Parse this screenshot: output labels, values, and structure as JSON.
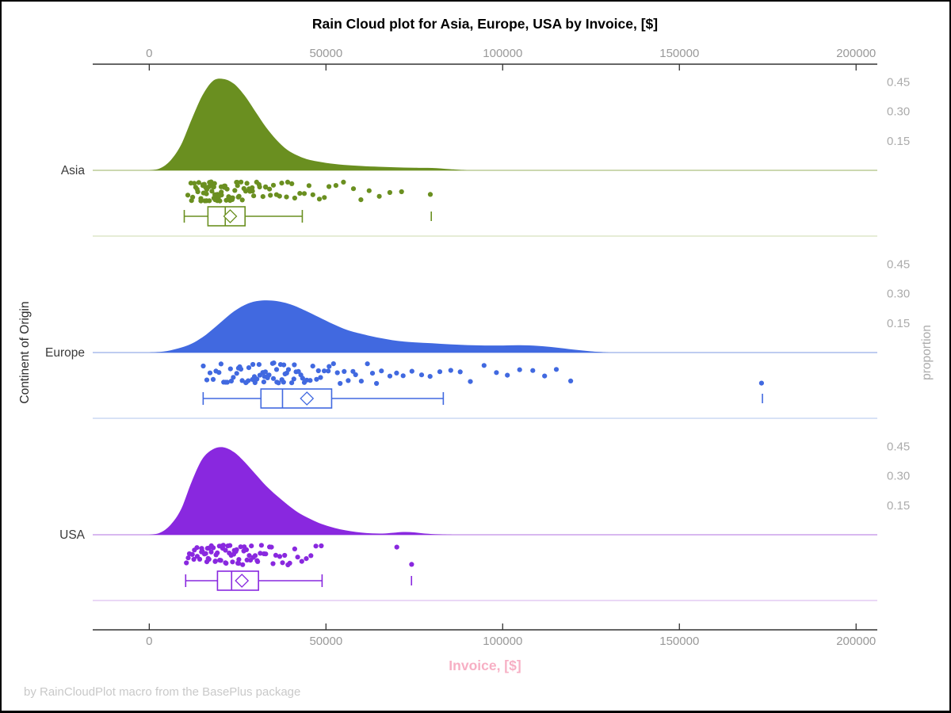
{
  "title": "Rain Cloud plot for Asia, Europe, USA by Invoice, [$]",
  "xlabel": "Invoice, [$]",
  "ylabel_left": "Continent of Origin",
  "ylabel_right": "proportion",
  "footer": "by RainCloudPlot macro from the BasePlus package",
  "colors": {
    "title": "#000000",
    "xlabel_pink": "#F7AFC4",
    "footer_gray": "#c9c9c9",
    "axis_line": "#333333",
    "tick_label_gray": "#999999",
    "proportion_label_gray": "#ababab",
    "category_label": "#3a3a3a",
    "asia": "#6A8F20",
    "europe": "#4169E0",
    "usa": "#8928DF"
  },
  "chart_data": {
    "type": "raincloud",
    "title": "Rain Cloud plot for Asia, Europe, USA by Invoice, [$]",
    "xlabel": "Invoice, [$]",
    "ylabel": "Continent of Origin",
    "y2label": "proportion",
    "x_axis": {
      "ticks": [
        0,
        50000,
        100000,
        150000,
        200000
      ],
      "range": [
        -16000,
        206000
      ]
    },
    "proportion_ticks": [
      0.15,
      0.3,
      0.45
    ],
    "legend_position": "none",
    "grid": false,
    "groups": [
      {
        "label": "Asia",
        "color": "#6A8F20",
        "light_color": "#BCCC96",
        "separator_color": "#DDE5C8",
        "density": {
          "x": [
            0,
            3000,
            6000,
            9000,
            12000,
            15000,
            18000,
            21000,
            24000,
            27000,
            30000,
            33000,
            36000,
            39000,
            42000,
            45000,
            50000,
            55000,
            60000,
            65000,
            70000,
            75000,
            80000,
            85000,
            90000
          ],
          "y": [
            0,
            0.01,
            0.05,
            0.13,
            0.26,
            0.38,
            0.455,
            0.465,
            0.44,
            0.38,
            0.3,
            0.22,
            0.155,
            0.105,
            0.075,
            0.055,
            0.038,
            0.028,
            0.022,
            0.018,
            0.015,
            0.013,
            0.012,
            0.006,
            0
          ]
        },
        "box": {
          "whisker_low": 9900,
          "q1": 16600,
          "median": 21500,
          "q3": 27100,
          "whisker_high": 43300,
          "mean": 22900,
          "outliers": [
            79800
          ]
        },
        "points": [
          11200,
          11700,
          12100,
          12500,
          12800,
          13100,
          13400,
          13700,
          14000,
          14300,
          14600,
          14900,
          15100,
          15300,
          15500,
          15700,
          15900,
          16100,
          16300,
          16500,
          16700,
          16900,
          17100,
          17300,
          17500,
          17700,
          17900,
          18100,
          18300,
          18500,
          18700,
          18900,
          19100,
          19300,
          19500,
          19700,
          19900,
          20100,
          20300,
          20500,
          20700,
          20900,
          21100,
          21400,
          21700,
          22000,
          22300,
          22600,
          22900,
          23200,
          23500,
          23800,
          24100,
          24400,
          24700,
          25000,
          25300,
          25600,
          26000,
          26400,
          26800,
          27200,
          27600,
          28000,
          28400,
          28800,
          29300,
          29800,
          30300,
          30800,
          31400,
          32000,
          32600,
          33200,
          33900,
          34600,
          35300,
          36000,
          36800,
          37600,
          38500,
          39400,
          40400,
          41500,
          42600,
          43800,
          45000,
          46500,
          48000,
          49500,
          51000,
          53000,
          55000,
          57500,
          60000,
          62500,
          65000,
          68000,
          71500,
          79800
        ]
      },
      {
        "label": "Europe",
        "color": "#4169E0",
        "light_color": "#A9BCEC",
        "separator_color": "#CCD8F4",
        "density": {
          "x": [
            0,
            4000,
            8000,
            12000,
            16000,
            20000,
            24000,
            28000,
            32000,
            36000,
            40000,
            44000,
            48000,
            52000,
            56000,
            60000,
            65000,
            70000,
            75000,
            80000,
            85000,
            90000,
            95000,
            100000,
            105000,
            110000,
            115000,
            120000,
            125000,
            130000
          ],
          "y": [
            0,
            0.005,
            0.02,
            0.045,
            0.09,
            0.15,
            0.21,
            0.25,
            0.265,
            0.262,
            0.245,
            0.215,
            0.18,
            0.145,
            0.115,
            0.095,
            0.075,
            0.06,
            0.052,
            0.047,
            0.042,
            0.038,
            0.036,
            0.036,
            0.037,
            0.034,
            0.026,
            0.015,
            0.006,
            0
          ]
        },
        "box": {
          "whisker_low": 15250,
          "q1": 31600,
          "median": 37700,
          "q3": 51600,
          "whisker_high": 83200,
          "mean": 44600,
          "outliers": [
            173500
          ]
        },
        "points": [
          15500,
          16500,
          17400,
          18200,
          19000,
          19700,
          20400,
          21000,
          21600,
          22200,
          22800,
          23400,
          24000,
          24500,
          25000,
          25500,
          26000,
          26500,
          27000,
          27500,
          28000,
          28500,
          29000,
          29400,
          29800,
          30200,
          30600,
          31000,
          31400,
          31800,
          32200,
          32600,
          33000,
          33400,
          33800,
          34200,
          34600,
          35000,
          35400,
          35800,
          36200,
          36600,
          37000,
          37400,
          37800,
          38200,
          38700,
          39200,
          39700,
          40200,
          40700,
          41200,
          41800,
          42400,
          43000,
          43600,
          44200,
          44900,
          45600,
          46300,
          47000,
          47800,
          48600,
          49400,
          50300,
          51200,
          52100,
          53100,
          54100,
          55200,
          56300,
          57500,
          58700,
          60000,
          61500,
          63000,
          64500,
          66000,
          68000,
          70000,
          72000,
          74500,
          77000,
          79500,
          82000,
          85000,
          88000,
          91000,
          94500,
          98000,
          101500,
          105000,
          108500,
          112000,
          115500,
          119000,
          173500
        ]
      },
      {
        "label": "USA",
        "color": "#8928DF",
        "light_color": "#CBA0EC",
        "separator_color": "#E3CCF4",
        "density": {
          "x": [
            0,
            3000,
            6000,
            9000,
            12000,
            15000,
            18000,
            21000,
            24000,
            27000,
            30000,
            33000,
            36000,
            39000,
            42000,
            45000,
            48000,
            51000,
            54000,
            57000,
            60000,
            63000,
            66000,
            69000,
            72000,
            75000,
            78000,
            82000,
            86000
          ],
          "y": [
            0,
            0.01,
            0.05,
            0.13,
            0.27,
            0.385,
            0.435,
            0.445,
            0.42,
            0.37,
            0.31,
            0.25,
            0.2,
            0.155,
            0.115,
            0.085,
            0.06,
            0.042,
            0.028,
            0.018,
            0.011,
            0.007,
            0.006,
            0.01,
            0.014,
            0.012,
            0.006,
            0.002,
            0
          ]
        },
        "box": {
          "whisker_low": 10300,
          "q1": 19300,
          "median": 23300,
          "q3": 30900,
          "whisker_high": 48900,
          "mean": 26200,
          "outliers": [
            74200
          ]
        },
        "points": [
          10500,
          11100,
          11600,
          12100,
          12500,
          12900,
          13300,
          13700,
          14100,
          14500,
          14800,
          15100,
          15400,
          15700,
          16000,
          16300,
          16600,
          16900,
          17200,
          17500,
          17800,
          18100,
          18400,
          18700,
          19000,
          19300,
          19600,
          19900,
          20200,
          20500,
          20800,
          21100,
          21400,
          21700,
          22000,
          22300,
          22600,
          22900,
          23200,
          23500,
          23800,
          24100,
          24400,
          24700,
          25000,
          25300,
          25600,
          25900,
          26200,
          26500,
          26900,
          27300,
          27700,
          28100,
          28500,
          28900,
          29300,
          29800,
          30300,
          30800,
          31300,
          31900,
          32500,
          33100,
          33700,
          34400,
          35100,
          35800,
          36600,
          37400,
          38200,
          39100,
          40000,
          41000,
          42100,
          43300,
          44500,
          45800,
          47200,
          48700,
          69800,
          74300
        ]
      }
    ]
  }
}
